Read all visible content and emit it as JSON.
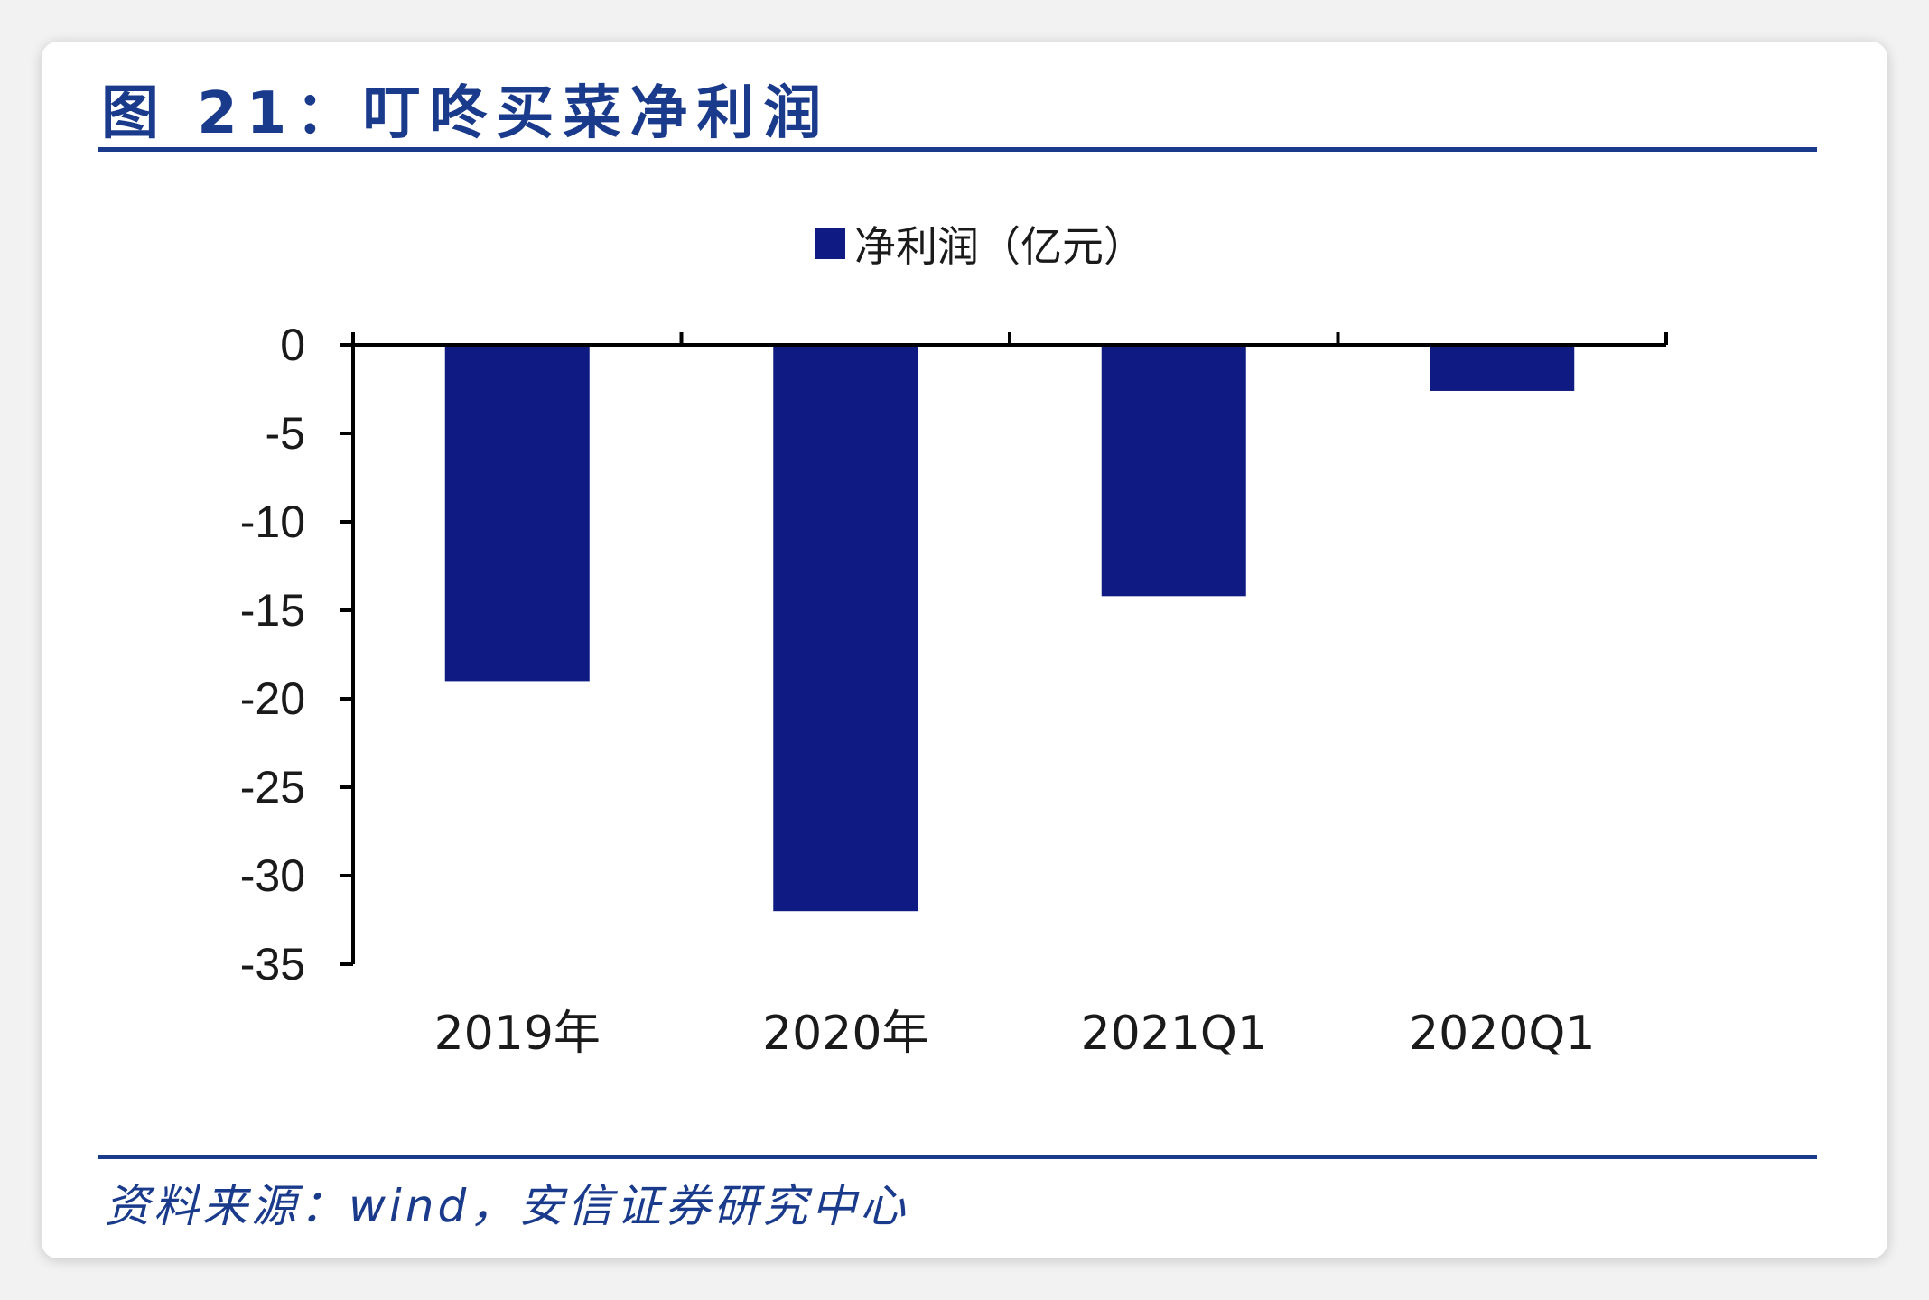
{
  "header": {
    "title": "图 21：叮咚买菜净利润"
  },
  "footer": {
    "source": "资料来源：wind，安信证券研究中心"
  },
  "colors": {
    "bar": "#0f1b82",
    "title": "#1a3a8c",
    "axis": "#000000",
    "text": "#1a1a1a"
  },
  "chart_data": {
    "type": "bar",
    "categories": [
      "2019年",
      "2020年",
      "2021Q1",
      "2020Q1"
    ],
    "series": [
      {
        "name": "净利润（亿元）",
        "values": [
          -19.0,
          -32.0,
          -14.2,
          -2.6
        ]
      }
    ],
    "ylim": [
      -35,
      0
    ],
    "yticks": [
      0,
      -5,
      -10,
      -15,
      -20,
      -25,
      -30,
      -35
    ],
    "ytick_labels": [
      "0",
      "-5",
      "-10",
      "-15",
      "-20",
      "-25",
      "-30",
      "-35"
    ],
    "legend_position": "top-center",
    "grid": false,
    "title": "",
    "xlabel": "",
    "ylabel": ""
  }
}
